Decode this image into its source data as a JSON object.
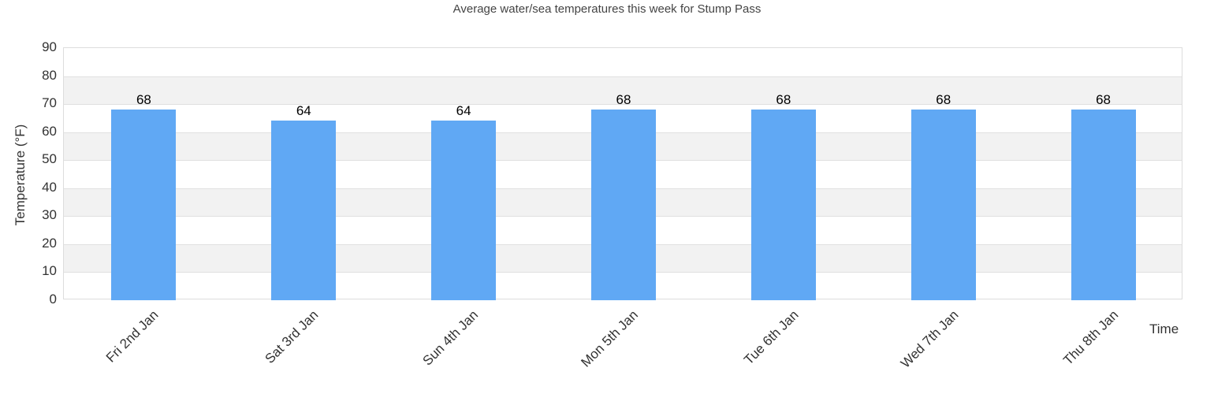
{
  "chart_data": {
    "type": "bar",
    "title": "Average water/sea temperatures this week for Stump Pass",
    "xlabel": "Time",
    "ylabel": "Temperature (°F)",
    "categories": [
      "Fri 2nd Jan",
      "Sat 3rd Jan",
      "Sun 4th Jan",
      "Mon 5th Jan",
      "Tue 6th Jan",
      "Wed 7th Jan",
      "Thu 8th Jan"
    ],
    "values": [
      68,
      64,
      64,
      68,
      68,
      68,
      68
    ],
    "ylim": [
      0,
      90
    ],
    "yticks": [
      0,
      10,
      20,
      30,
      40,
      50,
      60,
      70,
      80,
      90
    ],
    "grid": true,
    "legend": null,
    "bar_color": "#60a8f4",
    "data_labels": true
  }
}
